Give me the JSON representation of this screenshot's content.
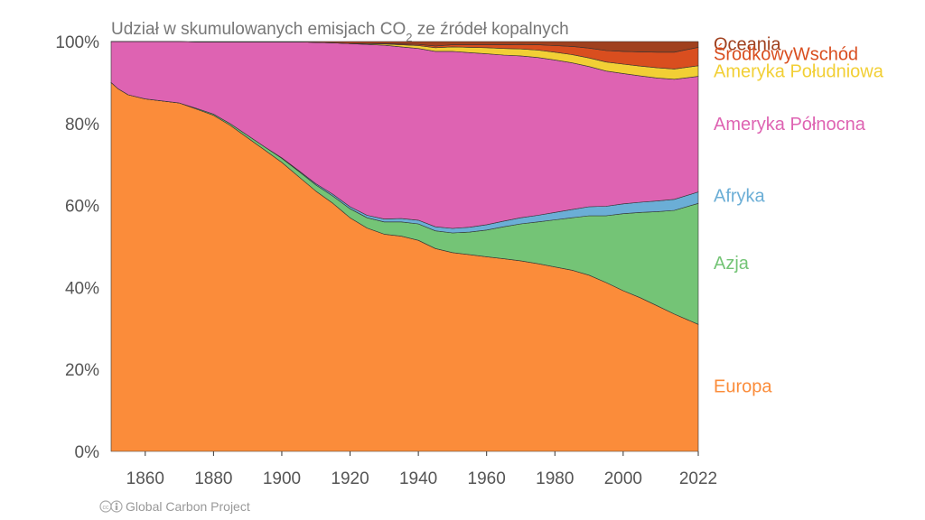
{
  "chart_data": {
    "type": "area",
    "stacked": true,
    "normalized": true,
    "title": "Udział w skumulowanych emisjach CO₂ ze źródeł kopalnych",
    "title_parts": {
      "before": "Udział w skumulowanych emisjach CO",
      "subscript": "2",
      "after": " ze źródeł kopalnych"
    },
    "xlabel": "",
    "ylabel": "",
    "xlim": [
      1850,
      2022
    ],
    "ylim": [
      0,
      100
    ],
    "x_ticks": [
      1860,
      1880,
      1900,
      1920,
      1940,
      1960,
      1980,
      2000,
      2022
    ],
    "y_ticks": [
      0,
      20,
      40,
      60,
      80,
      100
    ],
    "y_tick_labels": [
      "0%",
      "20%",
      "40%",
      "60%",
      "80%",
      "100%"
    ],
    "x": [
      1850,
      1852,
      1855,
      1860,
      1865,
      1870,
      1875,
      1880,
      1885,
      1890,
      1895,
      1900,
      1905,
      1910,
      1915,
      1920,
      1925,
      1930,
      1935,
      1940,
      1945,
      1950,
      1955,
      1960,
      1965,
      1970,
      1975,
      1980,
      1985,
      1990,
      1995,
      2000,
      2005,
      2010,
      2015,
      2022
    ],
    "series": [
      {
        "name": "Europa",
        "color": "#FB8C3A",
        "values": [
          90,
          88.5,
          87,
          86,
          85.5,
          85,
          83.5,
          82,
          79.5,
          76.5,
          73.5,
          70.5,
          67,
          63.5,
          60.5,
          57,
          54.5,
          53,
          52.5,
          51.5,
          49.5,
          48.5,
          48,
          47.5,
          47,
          46.5,
          45.8,
          45,
          44.2,
          43,
          41.2,
          39.2,
          37.5,
          35.5,
          33.5,
          31
        ]
      },
      {
        "name": "Azja",
        "color": "#74C476",
        "values": [
          0,
          0,
          0,
          0,
          0,
          0,
          0.2,
          0.3,
          0.4,
          0.6,
          0.8,
          1,
          1.3,
          1.5,
          1.8,
          2.2,
          2.5,
          3,
          3.5,
          4,
          4.3,
          4.8,
          5.5,
          6.5,
          7.8,
          9,
          10.2,
          11.5,
          12.8,
          14.5,
          16.3,
          18.8,
          20.8,
          23,
          25.3,
          29.5
        ]
      },
      {
        "name": "Afryka",
        "color": "#6BAED6",
        "values": [
          0,
          0,
          0,
          0,
          0,
          0,
          0,
          0,
          0,
          0,
          0,
          0.1,
          0.2,
          0.3,
          0.4,
          0.5,
          0.6,
          0.7,
          0.8,
          0.9,
          1,
          1.1,
          1.2,
          1.3,
          1.4,
          1.5,
          1.6,
          1.8,
          2,
          2.2,
          2.3,
          2.4,
          2.5,
          2.6,
          2.7,
          2.8
        ]
      },
      {
        "name": "Ameryka Północna",
        "color": "#DE63B2",
        "values": [
          10,
          11.5,
          13,
          14,
          14.5,
          15,
          16.2,
          17.6,
          20,
          22.8,
          25.6,
          28.3,
          31.4,
          34.5,
          37,
          39.8,
          41.7,
          42.4,
          41.9,
          41.9,
          42.8,
          43.2,
          42.6,
          41.7,
          40.5,
          39.5,
          38.5,
          37.2,
          35.8,
          34.2,
          33,
          31.8,
          30.8,
          30,
          29.3,
          28.2
        ]
      },
      {
        "name": "Ameryka Południowa",
        "color": "#F2CF35",
        "values": [
          0,
          0,
          0,
          0,
          0,
          0,
          0,
          0,
          0,
          0,
          0,
          0,
          0,
          0,
          0,
          0,
          0.2,
          0.3,
          0.5,
          0.7,
          0.9,
          1.1,
          1.3,
          1.5,
          1.6,
          1.7,
          1.8,
          1.9,
          2,
          2.1,
          2.2,
          2.3,
          2.4,
          2.5,
          2.5,
          2.6
        ]
      },
      {
        "name": "ŚrodkowyWschód",
        "color": "#D94E1F",
        "values": [
          0,
          0,
          0,
          0,
          0,
          0,
          0,
          0,
          0,
          0,
          0,
          0,
          0,
          0,
          0,
          0,
          0,
          0.1,
          0.2,
          0.3,
          0.4,
          0.5,
          0.6,
          0.7,
          0.9,
          1.1,
          1.3,
          1.6,
          2,
          2.4,
          2.8,
          3.1,
          3.5,
          3.8,
          4.1,
          4.5
        ]
      },
      {
        "name": "Oceania",
        "color": "#A0401E",
        "values": [
          0,
          0,
          0,
          0,
          0,
          0,
          0.1,
          0.1,
          0.1,
          0.1,
          0.1,
          0.1,
          0.1,
          0.2,
          0.3,
          0.5,
          0.5,
          0.5,
          0.6,
          0.7,
          1.1,
          0.8,
          0.8,
          0.8,
          0.8,
          0.7,
          0.8,
          1,
          1.2,
          1.6,
          2.2,
          2.4,
          2.5,
          2.6,
          2.6,
          1.4
        ]
      }
    ],
    "legend": [
      {
        "name": "Oceania",
        "label": "Oceania",
        "color": "#A0401E",
        "y": 99.4
      },
      {
        "name": "ŚrodkowyWschód",
        "label": "ŚrodkowyWschód",
        "color": "#D94E1F",
        "y": 97
      },
      {
        "name": "Ameryka Południowa",
        "label": "Ameryka Południowa",
        "color": "#F2CF35",
        "y": 92.8
      },
      {
        "name": "Ameryka Północna",
        "label": "Ameryka Północna",
        "color": "#DE63B2",
        "y": 80
      },
      {
        "name": "Afryka",
        "label": "Afryka",
        "color": "#6BAED6",
        "y": 62.5
      },
      {
        "name": "Azja",
        "label": "Azja",
        "color": "#74C476",
        "y": 46
      },
      {
        "name": "Europa",
        "label": "Europa",
        "color": "#FB8C3A",
        "y": 16
      }
    ],
    "legend_placement": "right"
  },
  "footer": {
    "credit": "Global Carbon Project",
    "license_icon": "cc-by-icon"
  }
}
